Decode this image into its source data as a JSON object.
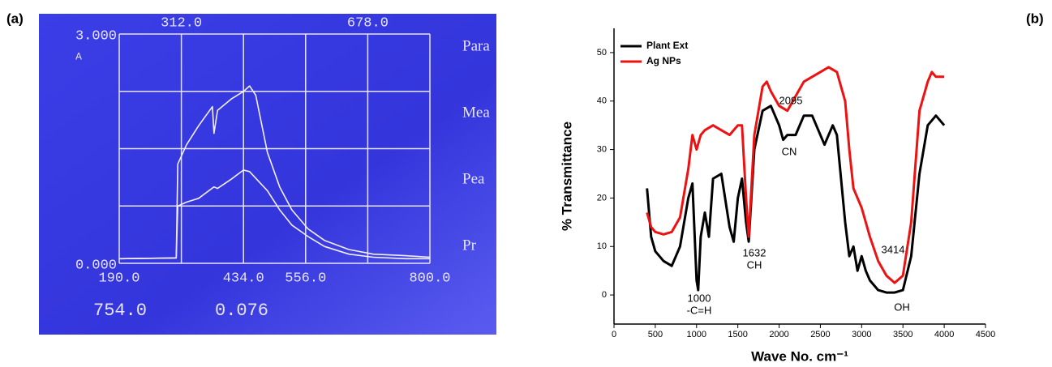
{
  "chart_data": [
    {
      "type": "line",
      "panel_label": "(a)",
      "xlim": [
        190,
        800
      ],
      "ylim": [
        0,
        3
      ],
      "xticks": [
        {
          "value": 190,
          "label": "190.0"
        },
        {
          "value": 312,
          "label": "312.0"
        },
        {
          "value": 434,
          "label": "434.0"
        },
        {
          "value": 556,
          "label": "556.0"
        },
        {
          "value": 678,
          "label": "678.0"
        },
        {
          "value": 800,
          "label": "800.0"
        }
      ],
      "yticks": [
        {
          "value": 0,
          "label": "0.000"
        },
        {
          "value": 3,
          "label": "3.000"
        }
      ],
      "ygrid": [
        0.75,
        1.5,
        2.25
      ],
      "y_unit": "A",
      "side_labels": [
        "Para",
        "Mea",
        "Pea",
        "Pr"
      ],
      "readout": [
        "754.0",
        "0.076"
      ],
      "series": [
        {
          "color": "#f2eefc",
          "x": [
            190,
            298,
            302,
            305,
            322,
            346,
            373,
            376,
            383,
            410,
            434,
            446,
            458,
            481,
            505,
            529,
            561,
            593,
            641,
            689,
            752,
            800
          ],
          "values": [
            0.06,
            0.07,
            0.07,
            1.3,
            1.55,
            1.8,
            2.05,
            1.7,
            2.0,
            2.15,
            2.25,
            2.32,
            2.2,
            1.45,
            1.0,
            0.7,
            0.45,
            0.3,
            0.18,
            0.12,
            0.1,
            0.08
          ]
        },
        {
          "color": "#f2eefc",
          "x": [
            190,
            298,
            302,
            305,
            322,
            346,
            376,
            383,
            410,
            434,
            446,
            481,
            505,
            529,
            561,
            593,
            641,
            689,
            752,
            800
          ],
          "values": [
            0.06,
            0.07,
            0.07,
            0.75,
            0.8,
            0.85,
            1.0,
            0.98,
            1.1,
            1.22,
            1.2,
            0.95,
            0.7,
            0.5,
            0.35,
            0.22,
            0.12,
            0.08,
            0.06,
            0.06
          ]
        }
      ]
    },
    {
      "type": "line",
      "panel_label": "(b)",
      "x_label": "Wave No. cm⁻¹",
      "y_label": "% Transmittance",
      "xlim": [
        0,
        4500
      ],
      "ylim": [
        -6,
        55
      ],
      "xticks": [
        0,
        500,
        1000,
        1500,
        2000,
        2500,
        3000,
        3500,
        4000,
        4500
      ],
      "yticks": [
        0,
        10,
        20,
        30,
        40,
        50
      ],
      "legend": "top-left",
      "annotations": [
        "1000",
        "-C=H",
        "1632",
        "CH",
        "2095",
        "CN",
        "3414",
        "OH"
      ],
      "series": [
        {
          "name": "Plant Ext",
          "color": "#000000",
          "x": [
            400,
            450,
            500,
            600,
            700,
            800,
            900,
            950,
            1000,
            1020,
            1050,
            1100,
            1150,
            1200,
            1300,
            1400,
            1450,
            1500,
            1550,
            1600,
            1632,
            1700,
            1800,
            1900,
            2000,
            2050,
            2100,
            2200,
            2300,
            2400,
            2500,
            2550,
            2650,
            2700,
            2800,
            2850,
            2900,
            2950,
            3000,
            3050,
            3100,
            3200,
            3300,
            3400,
            3500,
            3600,
            3700,
            3800,
            3900,
            4000
          ],
          "values": [
            22,
            12,
            9,
            7,
            6,
            10,
            20,
            23,
            3,
            1,
            12,
            17,
            12,
            24,
            25,
            14,
            11,
            20,
            24,
            15,
            11,
            30,
            38,
            39,
            35,
            32,
            33,
            33,
            37,
            37,
            33,
            31,
            35,
            33,
            15,
            8,
            10,
            5,
            8,
            5,
            3,
            1,
            0.5,
            0.5,
            1,
            8,
            25,
            35,
            37,
            35
          ]
        },
        {
          "name": "Ag NPs",
          "color": "#ee1111",
          "x": [
            400,
            450,
            500,
            600,
            700,
            800,
            900,
            950,
            1000,
            1050,
            1100,
            1200,
            1300,
            1400,
            1500,
            1550,
            1600,
            1632,
            1700,
            1800,
            1850,
            1900,
            2000,
            2100,
            2200,
            2300,
            2400,
            2500,
            2600,
            2700,
            2800,
            2850,
            2900,
            3000,
            3100,
            3200,
            3300,
            3400,
            3500,
            3600,
            3700,
            3800,
            3850,
            3900,
            4000
          ],
          "values": [
            17,
            14,
            13,
            12.5,
            13,
            16,
            26,
            33,
            30,
            33,
            34,
            35,
            34,
            33,
            35,
            35,
            20,
            12,
            33,
            43,
            44,
            42,
            39,
            38,
            41,
            44,
            45,
            46,
            47,
            46,
            40,
            30,
            22,
            18,
            12,
            7,
            4,
            2.5,
            4,
            15,
            38,
            44,
            46,
            45,
            45
          ]
        }
      ]
    }
  ]
}
